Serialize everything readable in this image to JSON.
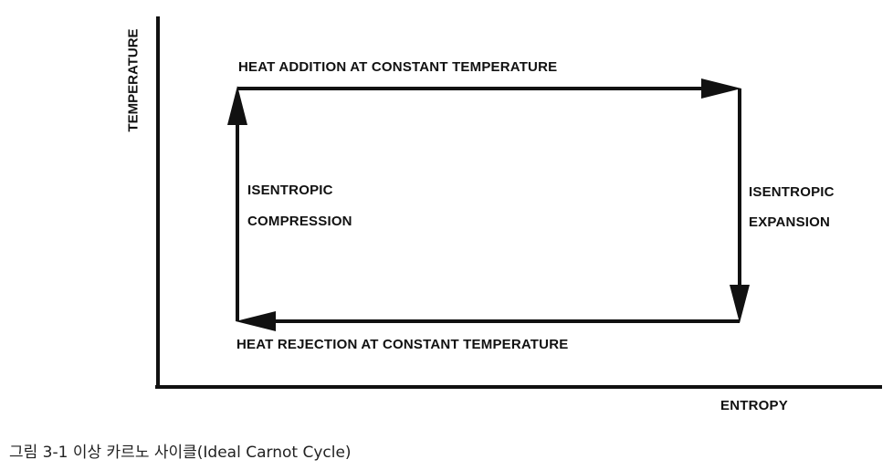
{
  "axes": {
    "y_label": "TEMPERATURE",
    "x_label": "ENTROPY"
  },
  "processes": {
    "top": "HEAT ADDITION AT CONSTANT TEMPERATURE",
    "bottom": "HEAT REJECTION AT CONSTANT TEMPERATURE",
    "left_line1": "ISENTROPIC",
    "left_line2": "COMPRESSION",
    "right_line1": "ISENTROPIC",
    "right_line2": "EXPANSION"
  },
  "caption": "그림 3-1 이상 카르노 사이클(Ideal Carnot Cycle)"
}
